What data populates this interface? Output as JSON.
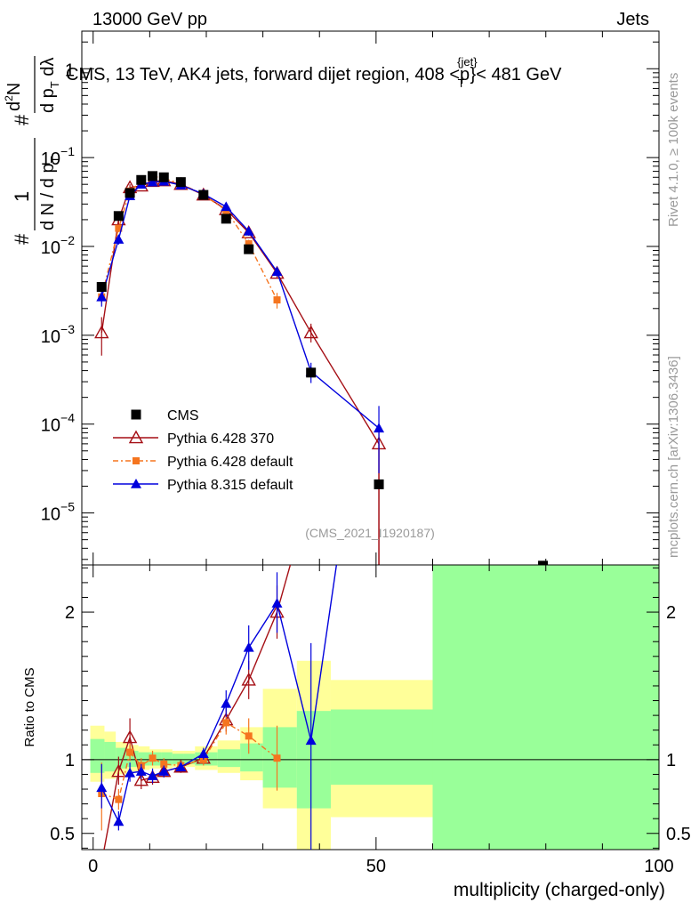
{
  "header": {
    "left": "13000 GeV pp",
    "right": "Jets"
  },
  "chart_data": {
    "type": "scatter",
    "title": "CMS, 13 TeV, AK4 jets, forward dijet region, 408 <p_T^{jet}< 481 GeV",
    "title_parts": [
      "CMS, 13 TeV, AK4 jets, forward dijet region, 408 <p",
      "{jet}",
      "T",
      "}< 481 GeV"
    ],
    "watermark": "(CMS_2021_I1920187)",
    "side_label_top": "Rivet 4.1.0, ≥ 100k events",
    "side_label_bottom": "mcplots.cern.ch [arXiv:1306.3436]",
    "xlabel": "multiplicity (charged-only)",
    "xlim": [
      -2,
      100
    ],
    "x_ticks": [
      0,
      50,
      100
    ],
    "upper": {
      "yscale": "log",
      "ylim": [
        2.6e-06,
        2.65
      ],
      "y_ticks": [
        {
          "value": 1e-05,
          "mantissa": "10",
          "exp": "−5"
        },
        {
          "value": 0.0001,
          "mantissa": "10",
          "exp": "−4"
        },
        {
          "value": 0.001,
          "mantissa": "10",
          "exp": "−3"
        },
        {
          "value": 0.01,
          "mantissa": "10",
          "exp": "−2"
        },
        {
          "value": 0.1,
          "mantissa": "10",
          "exp": "−1"
        },
        {
          "value": 1,
          "mantissa": "1",
          "exp": ""
        }
      ],
      "ylabel": {
        "hash": "#",
        "numerator": "1",
        "denominator": "d N / d p",
        "den_sub": "T",
        "second_hash": "#",
        "second_num": "d",
        "second_num_sup": "2",
        "second_num_rest": "N",
        "second_den": "d p",
        "second_den_sub": "T",
        "second_den_rest": " dλ"
      },
      "legend": [
        {
          "label": "CMS",
          "marker": "square",
          "color": "#000000"
        },
        {
          "label": "Pythia 6.428 370",
          "marker": "open-triangle",
          "color": "#a50f15"
        },
        {
          "label": "Pythia 6.428 default",
          "marker": "small-square",
          "color": "#f5751f"
        },
        {
          "label": "Pythia 8.315 default",
          "marker": "triangle",
          "color": "#0000dd"
        }
      ]
    },
    "lower": {
      "ylabel": "Ratio to CMS",
      "ylim": [
        0.39,
        2.32
      ],
      "y_ticks": [
        {
          "value": 0.5,
          "label": "0.5"
        },
        {
          "value": 1,
          "label": "1"
        },
        {
          "value": 2,
          "label": "2"
        }
      ],
      "bands": {
        "yellow": [
          {
            "x0": -0.5,
            "x1": 2,
            "lo": 0.85,
            "hi": 1.23
          },
          {
            "x0": 2,
            "x1": 4,
            "lo": 0.87,
            "hi": 1.19
          },
          {
            "x0": 4,
            "x1": 6,
            "lo": 0.9,
            "hi": 1.12
          },
          {
            "x0": 6,
            "x1": 8,
            "lo": 0.92,
            "hi": 1.1
          },
          {
            "x0": 8,
            "x1": 10,
            "lo": 0.93,
            "hi": 1.09
          },
          {
            "x0": 10,
            "x1": 12,
            "lo": 0.94,
            "hi": 1.07
          },
          {
            "x0": 12,
            "x1": 14,
            "lo": 0.94,
            "hi": 1.07
          },
          {
            "x0": 14,
            "x1": 16,
            "lo": 0.95,
            "hi": 1.06
          },
          {
            "x0": 16,
            "x1": 18,
            "lo": 0.95,
            "hi": 1.06
          },
          {
            "x0": 18,
            "x1": 22,
            "lo": 0.93,
            "hi": 1.09
          },
          {
            "x0": 22,
            "x1": 26,
            "lo": 0.91,
            "hi": 1.13
          },
          {
            "x0": 26,
            "x1": 30,
            "lo": 0.86,
            "hi": 1.22
          },
          {
            "x0": 30,
            "x1": 36,
            "lo": 0.67,
            "hi": 1.48
          },
          {
            "x0": 36,
            "x1": 42,
            "lo": 0.35,
            "hi": 1.67
          },
          {
            "x0": 42,
            "x1": 60,
            "lo": 0.61,
            "hi": 1.54
          },
          {
            "x0": 60,
            "x1": 100,
            "lo": 0.35,
            "hi": 3.0
          }
        ],
        "green": [
          {
            "x0": -0.5,
            "x1": 2,
            "lo": 0.91,
            "hi": 1.14
          },
          {
            "x0": 2,
            "x1": 4,
            "lo": 0.92,
            "hi": 1.12
          },
          {
            "x0": 4,
            "x1": 6,
            "lo": 0.94,
            "hi": 1.08
          },
          {
            "x0": 6,
            "x1": 8,
            "lo": 0.95,
            "hi": 1.06
          },
          {
            "x0": 8,
            "x1": 10,
            "lo": 0.96,
            "hi": 1.05
          },
          {
            "x0": 10,
            "x1": 12,
            "lo": 0.96,
            "hi": 1.05
          },
          {
            "x0": 12,
            "x1": 14,
            "lo": 0.96,
            "hi": 1.05
          },
          {
            "x0": 14,
            "x1": 16,
            "lo": 0.97,
            "hi": 1.04
          },
          {
            "x0": 16,
            "x1": 18,
            "lo": 0.97,
            "hi": 1.04
          },
          {
            "x0": 18,
            "x1": 22,
            "lo": 0.96,
            "hi": 1.05
          },
          {
            "x0": 22,
            "x1": 26,
            "lo": 0.95,
            "hi": 1.07
          },
          {
            "x0": 26,
            "x1": 30,
            "lo": 0.92,
            "hi": 1.11
          },
          {
            "x0": 30,
            "x1": 36,
            "lo": 0.81,
            "hi": 1.22
          },
          {
            "x0": 36,
            "x1": 42,
            "lo": 0.67,
            "hi": 1.33
          },
          {
            "x0": 42,
            "x1": 60,
            "lo": 0.83,
            "hi": 1.34
          },
          {
            "x0": 60,
            "x1": 100,
            "lo": 0.35,
            "hi": 3.0
          }
        ]
      }
    },
    "series": [
      {
        "name": "CMS",
        "color": "#000000",
        "marker": "square",
        "line": "none",
        "points": [
          {
            "x": 1.5,
            "y": 0.0035
          },
          {
            "x": 4.5,
            "y": 0.022
          },
          {
            "x": 6.5,
            "y": 0.04
          },
          {
            "x": 8.5,
            "y": 0.056
          },
          {
            "x": 10.5,
            "y": 0.062
          },
          {
            "x": 12.5,
            "y": 0.06
          },
          {
            "x": 15.5,
            "y": 0.053
          },
          {
            "x": 19.5,
            "y": 0.038
          },
          {
            "x": 23.5,
            "y": 0.0205
          },
          {
            "x": 27.5,
            "y": 0.0093
          },
          {
            "x": 38.5,
            "y": 0.00038
          },
          {
            "x": 50.5,
            "y": 2.1e-05
          },
          {
            "x": 79.5,
            "y": 2.55e-06
          }
        ]
      },
      {
        "name": "Pythia 6.428 370",
        "color": "#a50f15",
        "marker": "open-triangle",
        "line": "solid",
        "points": [
          {
            "x": 1.5,
            "y": 0.00107,
            "lo": 0.00059,
            "hi": 0.0016,
            "r": 0.3
          },
          {
            "x": 4.5,
            "y": 0.02,
            "lo": 0.0175,
            "hi": 0.023,
            "r": 0.92,
            "rlo": 0.83,
            "rhi": 1.02
          },
          {
            "x": 6.5,
            "y": 0.046,
            "lo": 0.042,
            "hi": 0.05,
            "r": 1.15,
            "rlo": 1.03,
            "rhi": 1.28
          },
          {
            "x": 8.5,
            "y": 0.048,
            "lo": 0.045,
            "hi": 0.051,
            "r": 0.86,
            "rlo": 0.8,
            "rhi": 0.93
          },
          {
            "x": 10.5,
            "y": 0.054,
            "lo": 0.051,
            "hi": 0.057,
            "r": 0.88,
            "rlo": 0.83,
            "rhi": 0.93
          },
          {
            "x": 12.5,
            "y": 0.055,
            "lo": 0.0525,
            "hi": 0.0575,
            "r": 0.92,
            "rlo": 0.88,
            "rhi": 0.96
          },
          {
            "x": 15.5,
            "y": 0.05,
            "lo": 0.048,
            "hi": 0.052,
            "r": 0.95,
            "rlo": 0.91,
            "rhi": 0.98
          },
          {
            "x": 19.5,
            "y": 0.038,
            "lo": 0.0365,
            "hi": 0.0395,
            "r": 1.01,
            "rlo": 0.97,
            "rhi": 1.05
          },
          {
            "x": 23.5,
            "y": 0.026,
            "lo": 0.0245,
            "hi": 0.0275,
            "r": 1.27,
            "rlo": 1.19,
            "rhi": 1.35
          },
          {
            "x": 27.5,
            "y": 0.0143,
            "lo": 0.0132,
            "hi": 0.0154,
            "r": 1.54,
            "rlo": 1.41,
            "rhi": 1.67
          },
          {
            "x": 32.5,
            "y": 0.005,
            "lo": 0.0044,
            "hi": 0.0056,
            "r": 2.0,
            "rlo": 1.82,
            "rhi": 2.18
          },
          {
            "x": 38.5,
            "y": 0.00107,
            "lo": 0.00083,
            "hi": 0.00135,
            "r": 2.82
          },
          {
            "x": 50.5,
            "y": 6e-05,
            "lo": 2e-06,
            "hi": 0.0001,
            "r": 2.85
          }
        ]
      },
      {
        "name": "Pythia 6.428 default",
        "color": "#f5751f",
        "marker": "small-square",
        "line": "dashdot",
        "points": [
          {
            "x": 1.5,
            "y": 0.0027,
            "lo": 0.0023,
            "hi": 0.0031,
            "r": 0.77,
            "rlo": 0.52,
            "rhi": 0.98
          },
          {
            "x": 4.5,
            "y": 0.016,
            "lo": 0.0145,
            "hi": 0.0175,
            "r": 0.73,
            "rlo": 0.66,
            "rhi": 0.8
          },
          {
            "x": 6.5,
            "y": 0.042,
            "lo": 0.039,
            "hi": 0.045,
            "r": 1.05,
            "rlo": 0.99,
            "rhi": 1.11
          },
          {
            "x": 8.5,
            "y": 0.054,
            "lo": 0.051,
            "hi": 0.057,
            "r": 0.96,
            "rlo": 0.91,
            "rhi": 1.01
          },
          {
            "x": 10.5,
            "y": 0.062,
            "lo": 0.059,
            "hi": 0.065,
            "r": 1.01,
            "rlo": 0.96,
            "rhi": 1.06
          },
          {
            "x": 12.5,
            "y": 0.058,
            "lo": 0.0555,
            "hi": 0.0605,
            "r": 0.97,
            "rlo": 0.93,
            "rhi": 1.01
          },
          {
            "x": 15.5,
            "y": 0.051,
            "lo": 0.049,
            "hi": 0.053,
            "r": 0.96,
            "rlo": 0.93,
            "rhi": 0.99
          },
          {
            "x": 19.5,
            "y": 0.038,
            "lo": 0.0365,
            "hi": 0.0395,
            "r": 1.0,
            "rlo": 0.96,
            "rhi": 1.04
          },
          {
            "x": 23.5,
            "y": 0.0255,
            "lo": 0.024,
            "hi": 0.027,
            "r": 1.25,
            "rlo": 1.17,
            "rhi": 1.33
          },
          {
            "x": 27.5,
            "y": 0.0107,
            "lo": 0.0095,
            "hi": 0.0119,
            "r": 1.16,
            "rlo": 1.04,
            "rhi": 1.28
          },
          {
            "x": 32.5,
            "y": 0.0025,
            "lo": 0.002,
            "hi": 0.003,
            "r": 1.01,
            "rlo": 0.79,
            "rhi": 1.23
          }
        ]
      },
      {
        "name": "Pythia 8.315 default",
        "color": "#0000dd",
        "marker": "triangle",
        "line": "solid",
        "points": [
          {
            "x": 1.5,
            "y": 0.0027,
            "lo": 0.0021,
            "hi": 0.0033,
            "r": 0.81,
            "rlo": 0.67,
            "rhi": 0.97
          },
          {
            "x": 4.5,
            "y": 0.012,
            "lo": 0.0105,
            "hi": 0.0135,
            "r": 0.58,
            "rlo": 0.52,
            "rhi": 0.65
          },
          {
            "x": 6.5,
            "y": 0.037,
            "lo": 0.034,
            "hi": 0.04,
            "r": 0.91,
            "rlo": 0.85,
            "rhi": 0.98
          },
          {
            "x": 8.5,
            "y": 0.05,
            "lo": 0.047,
            "hi": 0.053,
            "r": 0.92,
            "rlo": 0.87,
            "rhi": 0.97
          },
          {
            "x": 10.5,
            "y": 0.053,
            "lo": 0.05,
            "hi": 0.056,
            "r": 0.89,
            "rlo": 0.84,
            "rhi": 0.94
          },
          {
            "x": 12.5,
            "y": 0.054,
            "lo": 0.0515,
            "hi": 0.0565,
            "r": 0.92,
            "rlo": 0.88,
            "rhi": 0.96
          },
          {
            "x": 15.5,
            "y": 0.049,
            "lo": 0.047,
            "hi": 0.051,
            "r": 0.95,
            "rlo": 0.92,
            "rhi": 0.98
          },
          {
            "x": 19.5,
            "y": 0.039,
            "lo": 0.0375,
            "hi": 0.0405,
            "r": 1.04,
            "rlo": 1.0,
            "rhi": 1.08
          },
          {
            "x": 23.5,
            "y": 0.028,
            "lo": 0.0265,
            "hi": 0.0295,
            "r": 1.38,
            "rlo": 1.29,
            "rhi": 1.47
          },
          {
            "x": 27.5,
            "y": 0.0148,
            "lo": 0.0136,
            "hi": 0.016,
            "r": 1.76,
            "rlo": 1.61,
            "rhi": 1.91
          },
          {
            "x": 32.5,
            "y": 0.0052,
            "lo": 0.0046,
            "hi": 0.0058,
            "r": 2.06,
            "rlo": 1.86,
            "rhi": 2.27
          },
          {
            "x": 38.5,
            "y": 0.00039,
            "lo": 0.00029,
            "hi": 0.00049,
            "r": 1.13,
            "rlo": 0.35,
            "rhi": 1.79
          },
          {
            "x": 50.5,
            "y": 9e-05,
            "lo": 2.8e-05,
            "hi": 0.00016,
            "r": 4.3
          }
        ]
      }
    ]
  }
}
